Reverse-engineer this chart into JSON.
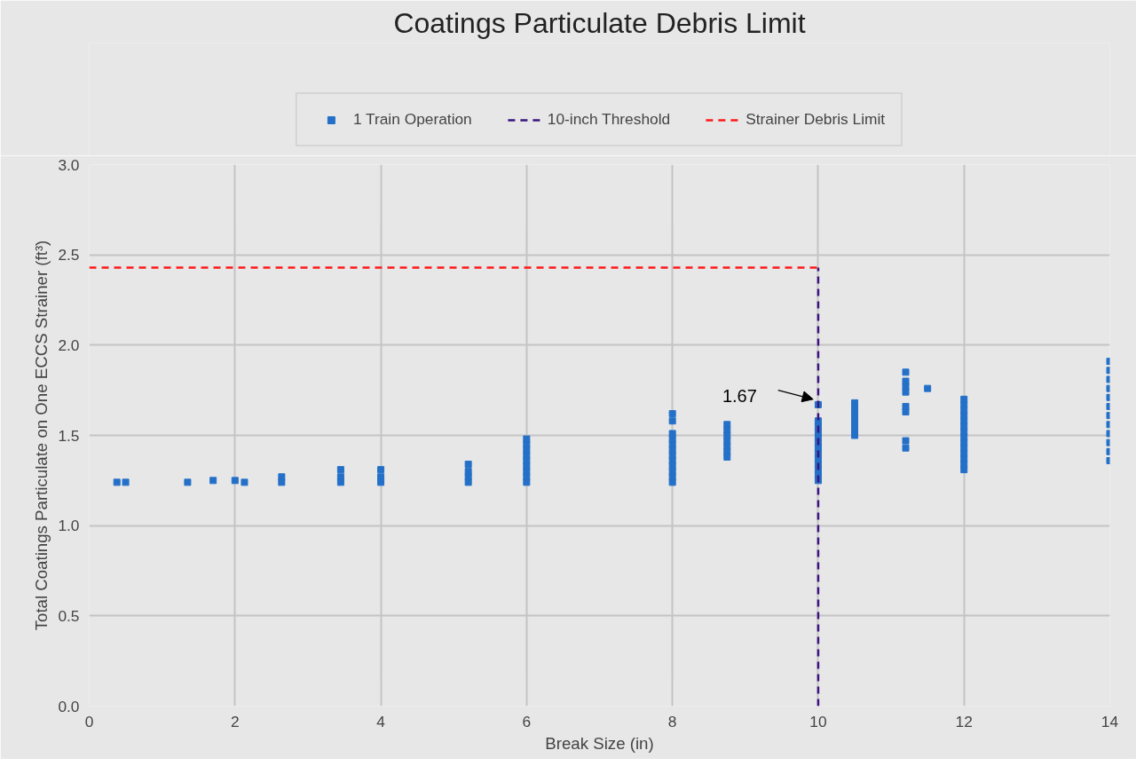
{
  "chart_data": {
    "type": "scatter",
    "title": "Coatings Particulate Debris Limit",
    "xlabel": "Break Size (in)",
    "ylabel": "Total Coatings Particulate on One ECCS Strainer (ft³)",
    "xlim": [
      0,
      14
    ],
    "xticks": [
      0,
      2,
      4,
      6,
      8,
      10,
      12,
      14
    ],
    "ylim": [
      0,
      3.0
    ],
    "yticks": [
      {
        "value": 0,
        "label": "0.0"
      },
      {
        "value": 0.5,
        "label": "0.5"
      },
      {
        "value": 1,
        "label": "1.0"
      },
      {
        "value": 1.5,
        "label": "1.5"
      },
      {
        "value": 2,
        "label": "2.0"
      },
      {
        "value": 2.5,
        "label": "2.5"
      },
      {
        "value": 3,
        "label": "3.0"
      }
    ],
    "grid": true,
    "legend": "top",
    "marker": "square",
    "series": [
      {
        "name": "1 Train Operation",
        "color": "#2470c8",
        "x": [
          0.38,
          0.5,
          1.35,
          1.7,
          2.0,
          2.13,
          2.64,
          2.64,
          3.45,
          3.45,
          3.45,
          4.0,
          4.0,
          4.0,
          5.2,
          5.2,
          5.2,
          5.2,
          6,
          6,
          6,
          6,
          6,
          6,
          6,
          6,
          6,
          8,
          8,
          8,
          8,
          8,
          8,
          8,
          8,
          8,
          8,
          8,
          8,
          8.75,
          8.75,
          8.75,
          8.75,
          8.75,
          8.75,
          8.75,
          10,
          10,
          10,
          10,
          10,
          10,
          10,
          10,
          10,
          10,
          10,
          10,
          10,
          10.5,
          10.5,
          10.5,
          10.5,
          10.5,
          10.5,
          10.5,
          11.2,
          11.2,
          11.2,
          11.2,
          11.2,
          11.2,
          11.2,
          11.2,
          11.5,
          12,
          12,
          12,
          12,
          12,
          12,
          12,
          12,
          12,
          12,
          12,
          12,
          12,
          12,
          14,
          14,
          14,
          14,
          14,
          14,
          14,
          14,
          14,
          14,
          14,
          14
        ],
        "values": [
          1.24,
          1.24,
          1.24,
          1.25,
          1.25,
          1.24,
          1.24,
          1.27,
          1.24,
          1.27,
          1.31,
          1.24,
          1.27,
          1.31,
          1.24,
          1.27,
          1.3,
          1.34,
          1.24,
          1.27,
          1.3,
          1.33,
          1.36,
          1.39,
          1.42,
          1.45,
          1.48,
          1.24,
          1.27,
          1.3,
          1.33,
          1.36,
          1.39,
          1.42,
          1.45,
          1.48,
          1.51,
          1.58,
          1.62,
          1.38,
          1.41,
          1.44,
          1.47,
          1.5,
          1.53,
          1.56,
          1.25,
          1.28,
          1.31,
          1.34,
          1.37,
          1.4,
          1.43,
          1.46,
          1.49,
          1.52,
          1.55,
          1.58,
          1.67,
          1.5,
          1.53,
          1.56,
          1.59,
          1.62,
          1.65,
          1.68,
          1.43,
          1.47,
          1.63,
          1.66,
          1.74,
          1.77,
          1.8,
          1.85,
          1.76,
          1.31,
          1.34,
          1.37,
          1.4,
          1.43,
          1.46,
          1.49,
          1.52,
          1.55,
          1.58,
          1.61,
          1.64,
          1.67,
          1.7,
          1.36,
          1.41,
          1.46,
          1.51,
          1.56,
          1.61,
          1.66,
          1.71,
          1.76,
          1.81,
          1.86,
          1.91
        ]
      }
    ],
    "ref_lines": [
      {
        "axis": "x",
        "value": 10,
        "label": "10-inch Threshold",
        "color": "#3a1480",
        "line_style": "dashed"
      },
      {
        "axis": "y",
        "value": 2.43,
        "label": "Strainer Debris Limit",
        "color": "#ff1a1a",
        "line_style": "dashed"
      }
    ],
    "annotations": [
      {
        "text": "1.67",
        "x": 10,
        "y": 1.67
      }
    ]
  }
}
